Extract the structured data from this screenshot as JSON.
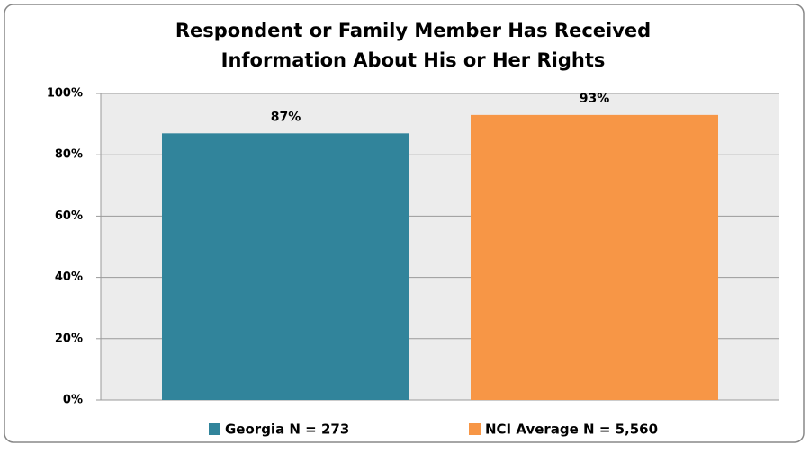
{
  "chart_data": {
    "type": "bar",
    "title": [
      "Respondent or Family Member Has Received",
      "Information About His or Her Rights"
    ],
    "categories": [
      null
    ],
    "series": [
      {
        "name": "Georgia N = 273",
        "color": "#31849b",
        "values": [
          87
        ],
        "value_labels": [
          "87%"
        ]
      },
      {
        "name": "NCI Average N = 5,560",
        "color": "#f79646",
        "values": [
          93
        ],
        "value_labels": [
          "93%"
        ]
      }
    ],
    "ylim": [
      0,
      100
    ],
    "yticks": [
      {
        "value": 0,
        "label": "0%"
      },
      {
        "value": 20,
        "label": "20%"
      },
      {
        "value": 40,
        "label": "40%"
      },
      {
        "value": 60,
        "label": "60%"
      },
      {
        "value": 80,
        "label": "80%"
      },
      {
        "value": 100,
        "label": "100%"
      }
    ],
    "grid": true,
    "legend": "bottom"
  }
}
